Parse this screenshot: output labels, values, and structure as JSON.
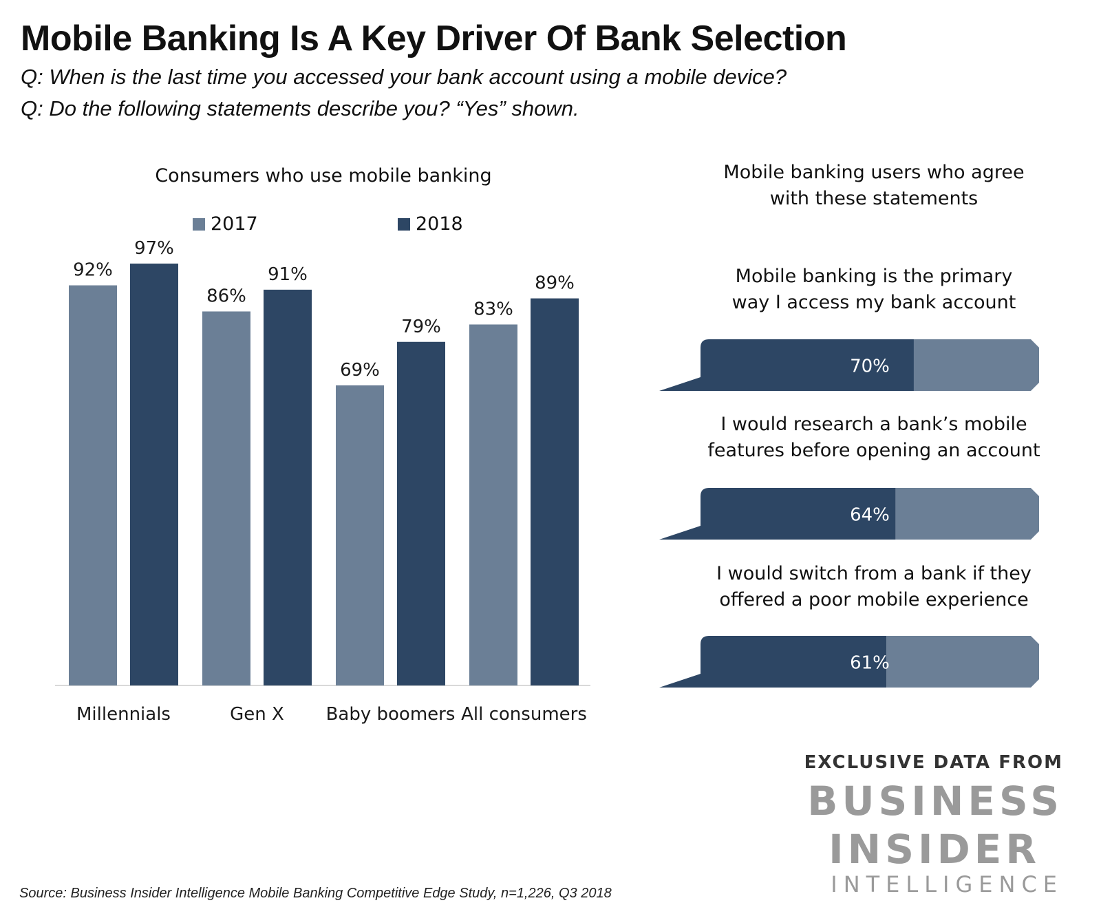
{
  "title": "Mobile Banking Is A Key Driver Of Bank Selection",
  "subtitle_lines": [
    "Q: When is the last time you accessed your bank account using a mobile device?",
    "Q: Do the following statements describe you? “Yes” shown."
  ],
  "colors": {
    "series_2017": "#6b7f96",
    "series_2018": "#2d4664",
    "axis": "#d9d9d9"
  },
  "chart_data": [
    {
      "type": "bar",
      "title": "Consumers who use mobile banking",
      "categories": [
        "Millennials",
        "Gen X",
        "Baby boomers",
        "All consumers"
      ],
      "series": [
        {
          "name": "2017",
          "values": [
            92,
            86,
            69,
            83
          ],
          "labels": [
            "92%",
            "86%",
            "69%",
            "83%"
          ]
        },
        {
          "name": "2018",
          "values": [
            97,
            91,
            79,
            89
          ],
          "labels": [
            "97%",
            "91%",
            "79%",
            "89%"
          ]
        }
      ],
      "legend": "top",
      "ylim": [
        0,
        100
      ],
      "grid": false
    },
    {
      "type": "bar",
      "title": "Mobile banking users who agree with these statements",
      "categories": [
        "Mobile banking is the primary way I access my bank account",
        "I would research a bank’s mobile features before opening an account",
        "I would switch from a bank if they offered a poor mobile experience"
      ],
      "values": [
        70,
        64,
        61
      ],
      "labels": [
        "70%",
        "64%",
        "61%"
      ],
      "ylim": [
        0,
        100
      ]
    }
  ],
  "panel_title_lines": [
    "Mobile banking users who agree",
    "with these statements"
  ],
  "statement_lines": [
    [
      "Mobile banking is the primary",
      "way I access my bank account"
    ],
    [
      "I would research a bank’s mobile",
      "features before opening an account"
    ],
    [
      "I would switch from a bank if they",
      "offered a poor mobile experience"
    ]
  ],
  "brand": {
    "line1": "EXCLUSIVE DATA FROM",
    "line2": "BUSINESS",
    "line3": "INSIDER",
    "line4": "INTELLIGENCE"
  },
  "source": "Source: Business Insider Intelligence Mobile Banking Competitive Edge Study, n=1,226, Q3 2018"
}
